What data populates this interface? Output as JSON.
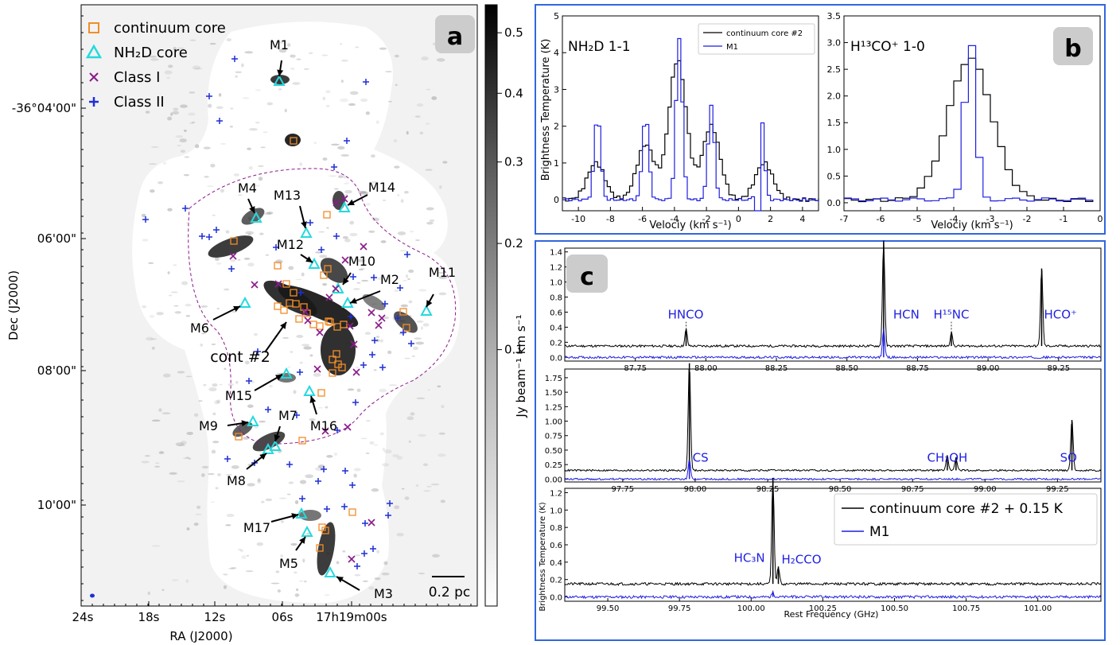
{
  "panel_a": {
    "tag": "a",
    "xlabel": "RA (J2000)",
    "ylabel": "Dec (J2000)",
    "xticks": [
      "24s",
      "18s",
      "12s",
      "06s",
      "17h19m00s"
    ],
    "yticks": [
      "-36°04'00\"",
      "06'00\"",
      "08'00\"",
      "10'00\""
    ],
    "colorbar": {
      "label": "Jy beam⁻¹ km s⁻¹",
      "ticks": [
        "0.5",
        "0.4",
        "0.3",
        "0.2",
        "0.1"
      ],
      "tick_values": [
        0.5,
        0.4,
        0.3,
        0.2,
        0.1
      ],
      "range": [
        0.0,
        0.55
      ],
      "scale": "sqrt"
    },
    "legend": [
      {
        "label": "continuum core",
        "marker": "square",
        "color": "#f28c28"
      },
      {
        "label": "NH₂D core",
        "marker": "triangle",
        "color": "#25d9dd"
      },
      {
        "label": "Class I",
        "marker": "x",
        "color": "#8b1a8b"
      },
      {
        "label": "Class II",
        "marker": "plus",
        "color": "#1f2fd6"
      }
    ],
    "scalebar": "0.2 pc",
    "source_labels": [
      "M1",
      "M2",
      "M3",
      "M4",
      "M5",
      "M6",
      "M7",
      "M8",
      "M9",
      "M10",
      "M11",
      "M12",
      "M13",
      "M14",
      "M15",
      "M16",
      "M17",
      "cont #2"
    ]
  },
  "panel_b": {
    "tag": "b",
    "ylabel": "Brightness Temperature (K)",
    "left": {
      "title": "NH₂D 1-1",
      "xlabel": "Velociy (km s⁻¹)",
      "xticks": [
        "-10",
        "-8",
        "-6",
        "-4",
        "-2",
        "0",
        "2",
        "4"
      ],
      "yticks": [
        "0",
        "1",
        "2",
        "3",
        "4",
        "5"
      ],
      "legend": [
        "continuum core #2",
        "M1"
      ]
    },
    "right": {
      "title": "H¹³CO⁺ 1-0",
      "xlabel": "Velociy (km s⁻¹)",
      "xticks": [
        "-7",
        "-6",
        "-5",
        "-4",
        "-3",
        "-2",
        "-1",
        "0"
      ],
      "yticks": [
        "0.0",
        "0.5",
        "1.0",
        "1.5",
        "2.0",
        "2.5",
        "3.0",
        "3.5"
      ]
    }
  },
  "panel_c": {
    "tag": "c",
    "ylabel": "Brightness Temperature (K)",
    "xlabel": "Rest Frequency (GHz)",
    "row1": {
      "xticks": [
        "87.75",
        "88.00",
        "88.25",
        "88.50",
        "88.75",
        "89.00",
        "89.25"
      ],
      "yticks": [
        "0.0",
        "0.2",
        "0.4",
        "0.6",
        "0.8",
        "1.0",
        "1.2",
        "1.4"
      ],
      "lines": [
        "HNCO",
        "HCN",
        "H¹⁵NC",
        "HCO⁺"
      ]
    },
    "row2": {
      "xticks": [
        "97.75",
        "98.00",
        "98.25",
        "98.50",
        "98.75",
        "99.00",
        "99.25"
      ],
      "yticks": [
        "0.00",
        "0.25",
        "0.50",
        "0.75",
        "1.00",
        "1.25",
        "1.50",
        "1.75"
      ],
      "lines": [
        "CS",
        "CH₃OH",
        "SO"
      ]
    },
    "row3": {
      "xticks": [
        "99.50",
        "99.75",
        "100.00",
        "100.25",
        "100.50",
        "100.75",
        "101.00"
      ],
      "yticks": [
        "0.0",
        "0.2",
        "0.4",
        "0.6",
        "0.8",
        "1.0",
        "1.2"
      ],
      "lines": [
        "HC₃N",
        "H₂CCO"
      ]
    },
    "legend": [
      "continuum core #2 + 0.15 K",
      "M1"
    ]
  },
  "colors": {
    "black_series": "#000000",
    "blue_series": "#1f1fe0",
    "frame_blue": "#3366dd",
    "tag_bg": "#cccccc"
  },
  "chart_data": [
    {
      "type": "line",
      "title": "NH₂D 1-1",
      "xlabel": "Velociy (km s⁻¹)",
      "ylabel": "Brightness Temperature (K)",
      "xlim": [
        -11,
        5
      ],
      "ylim": [
        -0.3,
        5
      ],
      "series": [
        {
          "name": "continuum core #2",
          "peaks": [
            [
              -9.0,
              1.0
            ],
            [
              -5.9,
              1.5
            ],
            [
              -3.9,
              3.8
            ],
            [
              -1.8,
              2.0
            ],
            [
              1.5,
              1.0
            ]
          ],
          "width": 0.55
        },
        {
          "name": "M1",
          "peaks": [
            [
              -8.9,
              2.3
            ],
            [
              -5.9,
              2.3
            ],
            [
              -3.8,
              4.4
            ],
            [
              -1.8,
              2.55
            ],
            [
              1.3,
              2.4
            ]
          ],
          "width": 0.2
        }
      ]
    },
    {
      "type": "line",
      "title": "H¹³CO⁺ 1-0",
      "xlabel": "Velociy (km s⁻¹)",
      "ylabel": "Brightness Temperature (K)",
      "xlim": [
        -7,
        0
      ],
      "ylim": [
        -0.15,
        3.5
      ],
      "series": [
        {
          "name": "continuum core #2",
          "peak_v": -3.65,
          "peak_t": 2.65,
          "width": 0.6
        },
        {
          "name": "M1",
          "peak_v": -3.65,
          "peak_t": 3.05,
          "width": 0.15
        }
      ]
    },
    {
      "type": "line",
      "xlabel": "Rest Frequency (GHz)",
      "ylabel": "Brightness Temperature (K)",
      "xlim": [
        87.5,
        89.4
      ],
      "ylim": [
        -0.05,
        1.45
      ],
      "lines": [
        {
          "name": "HNCO",
          "freq": 87.93,
          "black": 0.22,
          "blue": 0.0
        },
        {
          "name": "HCN",
          "freq": 88.63,
          "black": 1.4,
          "blue": 0.38
        },
        {
          "name": "H¹⁵NC",
          "freq": 88.87,
          "black": 0.18,
          "blue": 0.0
        },
        {
          "name": "HCO⁺",
          "freq": 89.19,
          "black": 1.03,
          "blue": 0.0
        }
      ]
    },
    {
      "type": "line",
      "xlabel": "Rest Frequency (GHz)",
      "ylabel": "Brightness Temperature (K)",
      "xlim": [
        97.55,
        99.4
      ],
      "ylim": [
        -0.05,
        1.9
      ],
      "lines": [
        {
          "name": "CS",
          "freq": 97.98,
          "black": 1.85,
          "blue": 0.32
        },
        {
          "name": "CH₃OH",
          "freq": 98.87,
          "black": 0.25,
          "blue": 0.0
        },
        {
          "name": "CH₃OH",
          "freq": 98.9,
          "black": 0.22,
          "blue": 0.0
        },
        {
          "name": "SO",
          "freq": 99.3,
          "black": 0.87,
          "blue": 0.0
        }
      ]
    },
    {
      "type": "line",
      "xlabel": "Rest Frequency (GHz)",
      "ylabel": "Brightness Temperature (K)",
      "xlim": [
        99.35,
        101.22
      ],
      "ylim": [
        -0.05,
        1.25
      ],
      "lines": [
        {
          "name": "HC₃N",
          "freq": 100.076,
          "black": 1.22,
          "blue": 0.05
        },
        {
          "name": "H₂CCO",
          "freq": 100.095,
          "black": 0.2,
          "blue": 0.0
        }
      ]
    }
  ]
}
